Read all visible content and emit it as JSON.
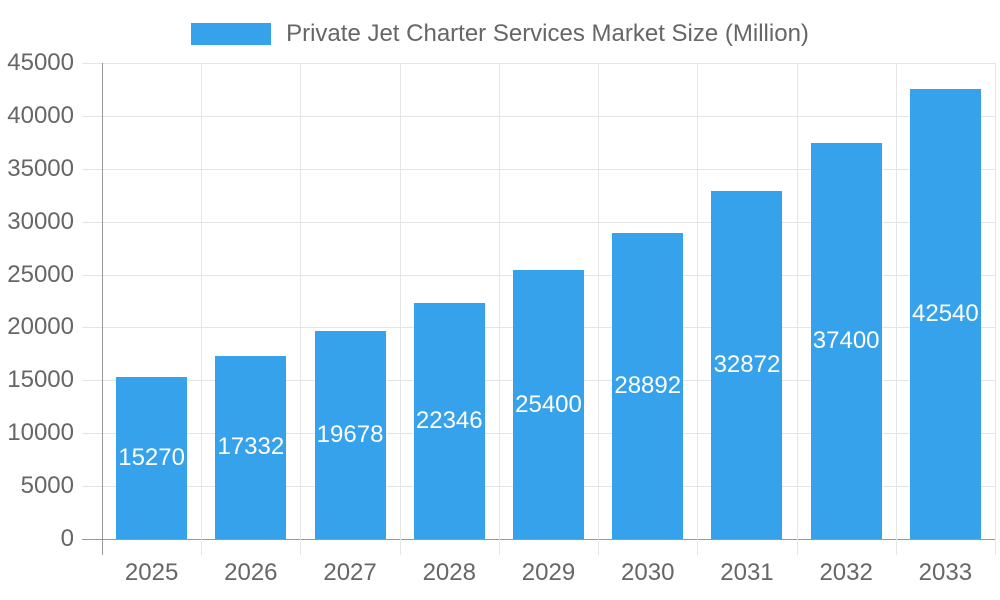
{
  "legend": {
    "label": "Private Jet Charter Services Market Size (Million)"
  },
  "chart_data": {
    "type": "bar",
    "title": "Private Jet Charter Services Market Size (Million)",
    "categories": [
      "2025",
      "2026",
      "2027",
      "2028",
      "2029",
      "2030",
      "2031",
      "2032",
      "2033"
    ],
    "values": [
      15270,
      17332,
      19678,
      22346,
      25400,
      28892,
      32872,
      37400,
      42540
    ],
    "value_labels": [
      "15270",
      "17332",
      "19678",
      "22346",
      "25400",
      "28892",
      "32872",
      "37400",
      "42540"
    ],
    "xlabel": "",
    "ylabel": "",
    "ylim": [
      0,
      45000
    ],
    "ytick_step": 5000,
    "ytick_labels": [
      "0",
      "5000",
      "10000",
      "15000",
      "20000",
      "25000",
      "30000",
      "35000",
      "40000",
      "45000"
    ],
    "grid": true,
    "legend_position": "top",
    "value_label_position": "center"
  },
  "colors": {
    "bar": "#36A2EB",
    "grid": "#e5e5e5",
    "axis": "#999999",
    "tick_text": "#666666",
    "value_text": "#ffffff",
    "background": "#ffffff"
  }
}
